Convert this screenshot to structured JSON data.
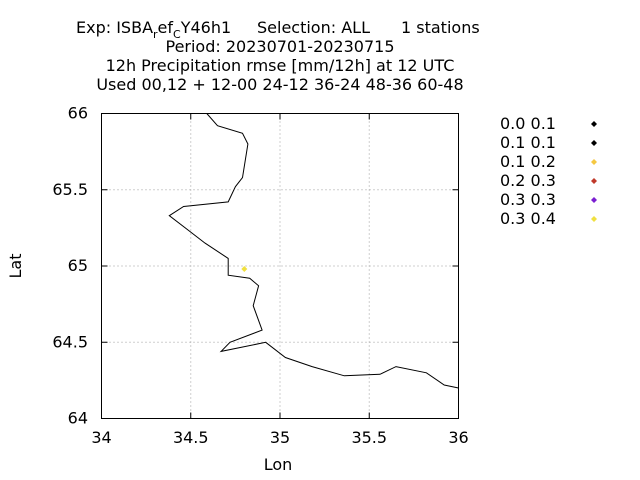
{
  "chart_data": {
    "type": "scatter",
    "title_lines": [
      "Exp: ISBA",
      "Period: 20230701-20230715",
      "12h Precipitation rmse [mm/12h] at  12 UTC",
      "Used  00,12  + 12-00 24-12 36-24 48-36 60-48"
    ],
    "title_exp": {
      "prefix": "Exp: ISBA",
      "sub1": "r",
      "mid": "ef",
      "sub2": "C",
      "suffix": "Y46h1",
      "selection": "Selection: ALL",
      "stations": "1 stations"
    },
    "xlabel": "Lon",
    "ylabel": "Lat",
    "xlim": [
      34,
      36
    ],
    "ylim": [
      64,
      66
    ],
    "xticks": [
      "34",
      "34.5",
      "35",
      "35.5",
      "36"
    ],
    "yticks": [
      "64",
      "64.5",
      "65",
      "65.5",
      "66"
    ],
    "grid": true,
    "grid_style": "dotted",
    "legend_position": "right",
    "legend": [
      {
        "label": "0.0 0.1",
        "color": "#000000"
      },
      {
        "label": "0.1 0.1",
        "color": "#000000"
      },
      {
        "label": "0.1 0.2",
        "color": "#f5c842"
      },
      {
        "label": "0.2 0.3",
        "color": "#c0392b"
      },
      {
        "label": "0.3 0.3",
        "color": "#7b1fd1"
      },
      {
        "label": "0.3 0.4",
        "color": "#f0e040"
      }
    ],
    "points": [
      {
        "lon": 34.8,
        "lat": 64.98,
        "color": "#f0e040"
      }
    ],
    "coastline": [
      [
        34.59,
        66.0
      ],
      [
        34.65,
        65.92
      ],
      [
        34.79,
        65.87
      ],
      [
        34.82,
        65.8
      ],
      [
        34.79,
        65.58
      ],
      [
        34.75,
        65.52
      ],
      [
        34.71,
        65.42
      ],
      [
        34.46,
        65.39
      ],
      [
        34.38,
        65.33
      ],
      [
        34.48,
        65.24
      ],
      [
        34.58,
        65.15
      ],
      [
        34.71,
        65.05
      ],
      [
        34.71,
        64.94
      ],
      [
        34.83,
        64.92
      ],
      [
        34.88,
        64.87
      ],
      [
        34.85,
        64.74
      ],
      [
        34.9,
        64.58
      ],
      [
        34.72,
        64.5
      ],
      [
        34.67,
        64.44
      ],
      [
        34.92,
        64.5
      ],
      [
        35.03,
        64.4
      ],
      [
        35.18,
        64.34
      ],
      [
        35.36,
        64.28
      ],
      [
        35.56,
        64.29
      ],
      [
        35.65,
        64.34
      ],
      [
        35.82,
        64.3
      ],
      [
        35.92,
        64.22
      ],
      [
        36.0,
        64.2
      ]
    ]
  }
}
